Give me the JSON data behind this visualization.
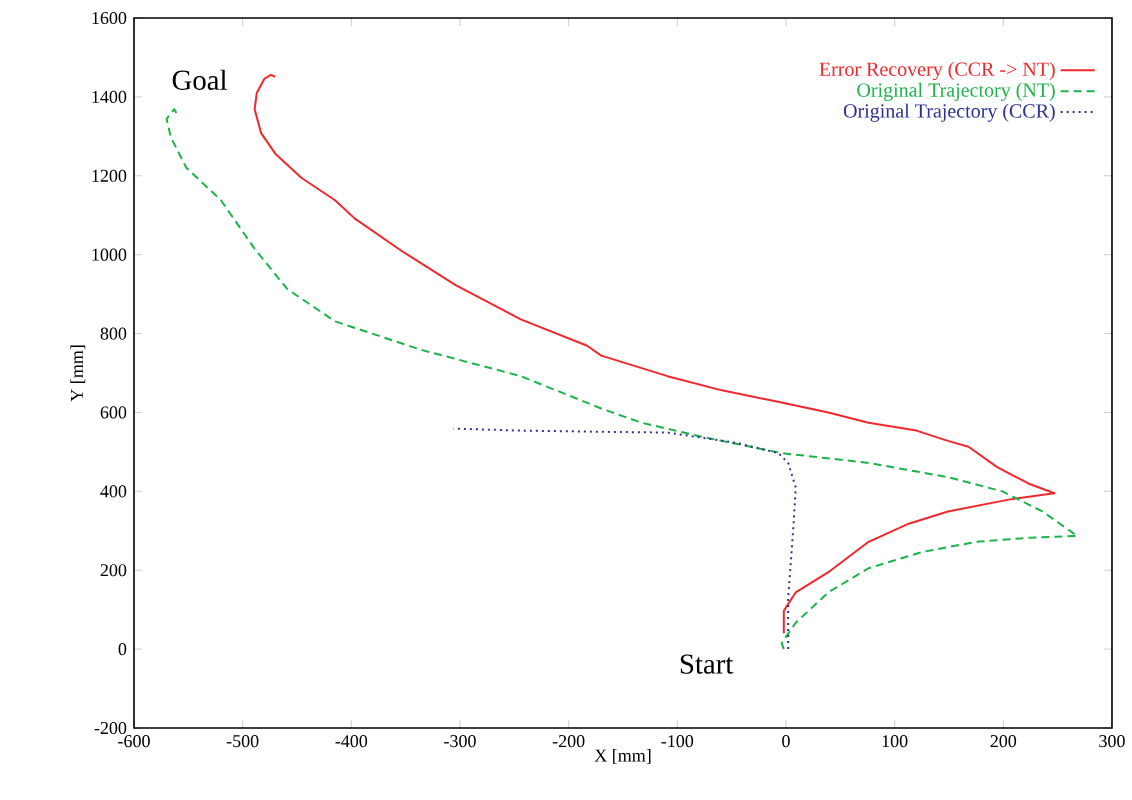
{
  "chart_data": {
    "type": "line",
    "xlabel": "X [mm]",
    "ylabel": "Y [mm]",
    "xlim": [
      -600,
      300
    ],
    "ylim": [
      -200,
      1600
    ],
    "xticks": [
      -600,
      -500,
      -400,
      -300,
      -200,
      -100,
      0,
      100,
      200,
      300
    ],
    "yticks": [
      -200,
      0,
      200,
      400,
      600,
      800,
      1000,
      1200,
      1400,
      1600
    ],
    "grid": false,
    "legend": "top right",
    "marker": "none",
    "annotations": [
      "Goal",
      "Start"
    ],
    "series": [
      {
        "name": "Error Recovery (CCR -> NT)",
        "color": "#f0282d",
        "line_style": "solid",
        "x": [
          -2,
          -2,
          9,
          39,
          76,
          113,
          149,
          205,
          247,
          223,
          194,
          168,
          149,
          120,
          76,
          39,
          -4,
          -59,
          -109,
          -170,
          -183,
          -244,
          -304,
          -354,
          -397,
          -415,
          -446,
          -470,
          -483,
          -489,
          -487,
          -480,
          -474,
          -470
        ],
        "values": [
          40,
          97,
          144,
          195,
          272,
          318,
          349,
          379,
          395,
          420,
          462,
          513,
          528,
          554,
          574,
          600,
          625,
          656,
          692,
          744,
          769,
          836,
          923,
          1010,
          1092,
          1138,
          1195,
          1256,
          1308,
          1369,
          1410,
          1446,
          1456,
          1451
        ]
      },
      {
        "name": "Original Trajectory (NT)",
        "color": "#1db34a",
        "line_style": "dashed",
        "x": [
          -2,
          -4,
          9,
          39,
          76,
          125,
          175,
          223,
          268,
          236,
          199,
          149,
          76,
          -4,
          -77,
          -133,
          -170,
          -244,
          -336,
          -415,
          -459,
          -489,
          -520,
          -552,
          -566,
          -570,
          -563,
          -561
        ],
        "values": [
          0,
          15,
          67,
          144,
          205,
          246,
          272,
          282,
          287,
          349,
          400,
          436,
          472,
          497,
          538,
          574,
          610,
          692,
          759,
          831,
          913,
          1015,
          1138,
          1221,
          1297,
          1344,
          1369,
          1359
        ]
      },
      {
        "name": "Original Trajectory (CCR)",
        "color": "#2e3192",
        "line_style": "dotted",
        "x": [
          2,
          2,
          7,
          9,
          2,
          -7,
          -46,
          -109,
          -170,
          -244,
          -306
        ],
        "values": [
          0,
          128,
          318,
          410,
          472,
          497,
          523,
          549,
          551,
          554,
          559
        ]
      }
    ]
  }
}
